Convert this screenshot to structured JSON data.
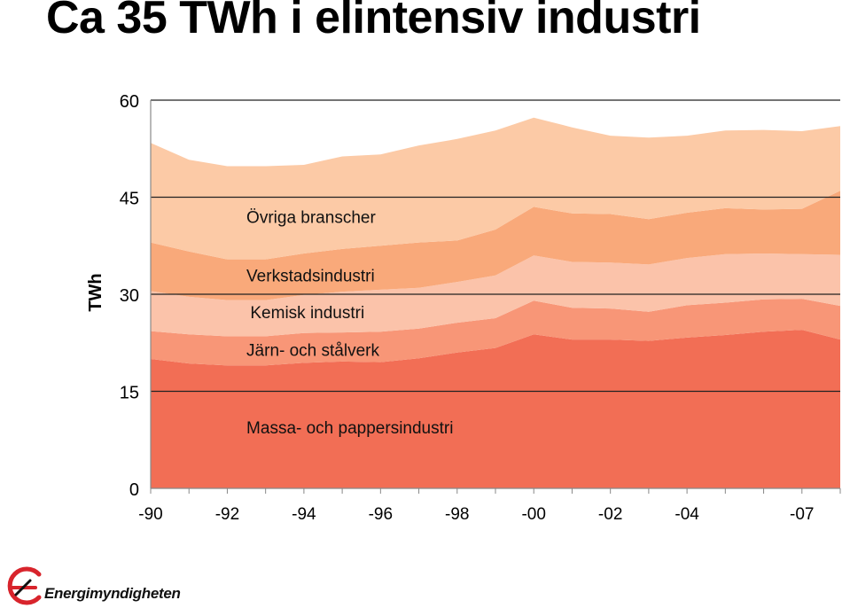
{
  "title": "Ca 35 TWh i elintensiv industri",
  "logo": {
    "text": "Energimyndigheten"
  },
  "colors": {
    "massa": "#f26e55",
    "jarn": "#f89677",
    "kemisk": "#fbc3aa",
    "verkstad": "#f9a97a",
    "ovriga": "#fccaa6",
    "grid": "#222222",
    "logo_red": "#d8242c"
  },
  "chart_data": {
    "type": "area",
    "stacked": true,
    "ylabel": "TWh",
    "ylim": [
      0,
      60
    ],
    "yticks": [
      "0",
      "15",
      "30",
      "45",
      "60"
    ],
    "grid": true,
    "x": [
      1990,
      1991,
      1992,
      1993,
      1994,
      1995,
      1996,
      1997,
      1998,
      1999,
      2000,
      2001,
      2002,
      2003,
      2004,
      2005,
      2006,
      2007,
      2008
    ],
    "xticks": [
      {
        "year": 1990,
        "label": "-90"
      },
      {
        "year": 1992,
        "label": "-92"
      },
      {
        "year": 1994,
        "label": "-94"
      },
      {
        "year": 1996,
        "label": "-96"
      },
      {
        "year": 1998,
        "label": "-98"
      },
      {
        "year": 2000,
        "label": "-00"
      },
      {
        "year": 2002,
        "label": "-02"
      },
      {
        "year": 2004,
        "label": "-04"
      },
      {
        "year": 2007,
        "label": "-07"
      }
    ],
    "series": [
      {
        "key": "massa",
        "name": "Massa- och pappersindustri",
        "label_year": 1992.5,
        "label_value": 8.5,
        "values": [
          20.0,
          19.3,
          19.0,
          19.0,
          19.4,
          19.6,
          19.5,
          20.1,
          21.0,
          21.7,
          23.8,
          23.0,
          23.0,
          22.8,
          23.3,
          23.7,
          24.2,
          24.5,
          23.0
        ]
      },
      {
        "key": "jarn",
        "name": "Järn- och stålverk",
        "label_year": 1992.5,
        "label_value": 20.5,
        "values": [
          4.3,
          4.5,
          4.5,
          4.5,
          4.6,
          4.5,
          4.7,
          4.6,
          4.6,
          4.6,
          5.2,
          4.9,
          4.8,
          4.5,
          5.0,
          5.0,
          5.0,
          4.8,
          5.2
        ]
      },
      {
        "key": "kemisk",
        "name": "Kemisk industri",
        "label_year": 1992.6,
        "label_value": 26.3,
        "values": [
          6.2,
          5.8,
          5.6,
          5.6,
          5.9,
          6.3,
          6.5,
          6.3,
          6.3,
          6.6,
          7.0,
          7.1,
          7.1,
          7.3,
          7.3,
          7.5,
          7.1,
          6.9,
          7.9
        ]
      },
      {
        "key": "verkstad",
        "name": "Verkstadsindustri",
        "label_year": 1992.5,
        "label_value": 32.0,
        "values": [
          7.5,
          7.0,
          6.3,
          6.3,
          6.4,
          6.6,
          6.8,
          7.0,
          6.4,
          7.1,
          7.5,
          7.5,
          7.5,
          7.0,
          7.0,
          7.1,
          6.8,
          7.0,
          9.9
        ]
      },
      {
        "key": "ovriga",
        "name": "Övriga branscher",
        "label_year": 1992.5,
        "label_value": 41.0,
        "values": [
          15.4,
          14.2,
          14.4,
          14.4,
          13.7,
          14.3,
          14.1,
          15.0,
          15.7,
          15.3,
          13.8,
          13.3,
          12.1,
          12.6,
          11.9,
          12.0,
          12.3,
          12.0,
          10.0
        ]
      }
    ]
  }
}
